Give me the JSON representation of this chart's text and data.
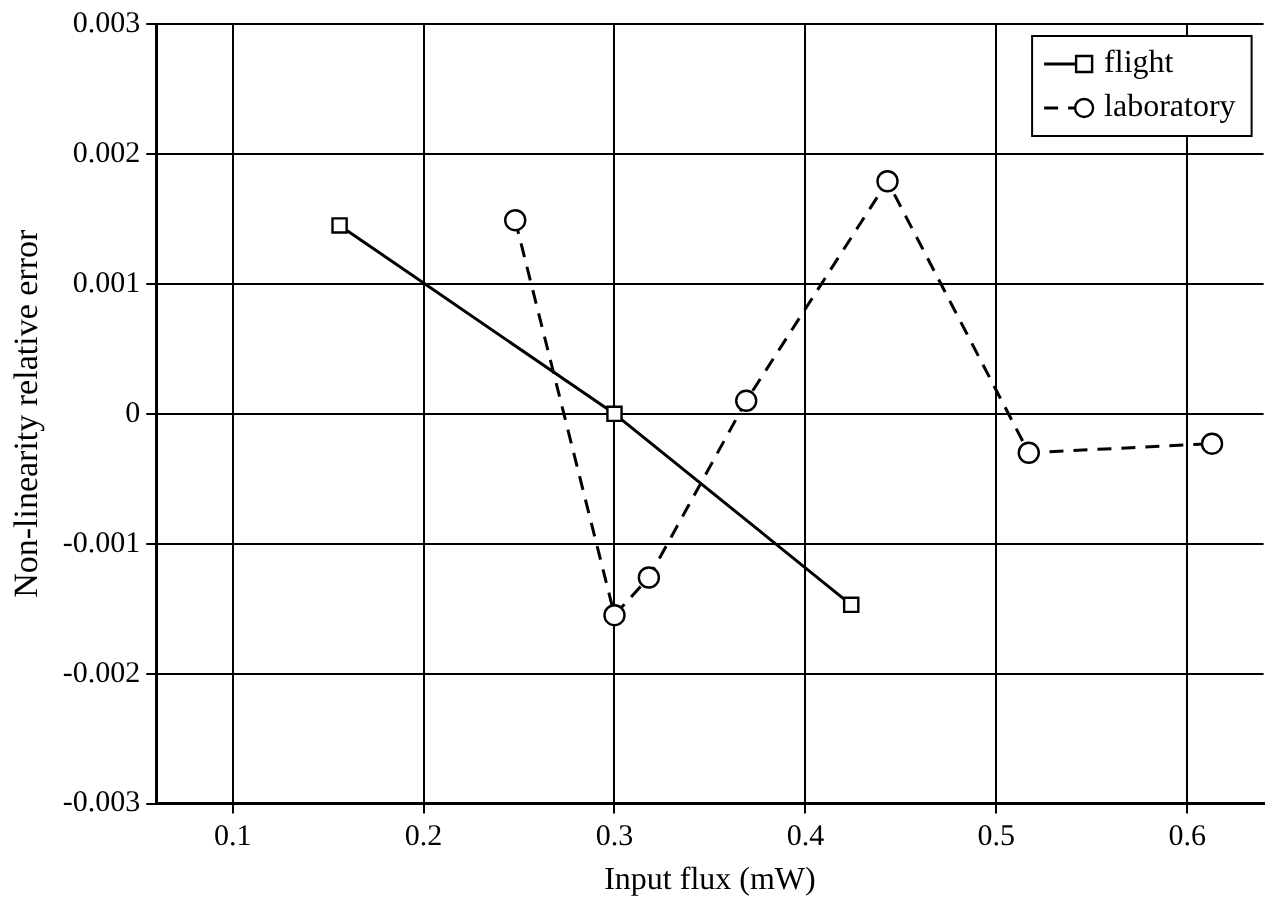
{
  "chart_data": {
    "type": "line",
    "xlabel": "Input flux (mW)",
    "ylabel": "Non-linearity relative error",
    "xlim": [
      0.06,
      0.64
    ],
    "xticks": [
      0.1,
      0.2,
      0.3,
      0.4,
      0.5,
      0.6
    ],
    "ylim": [
      -0.003,
      0.003
    ],
    "yticks": [
      -0.003,
      -0.002,
      -0.001,
      0,
      0.001,
      0.002,
      0.003
    ],
    "grid": true,
    "legend": "top right",
    "series": [
      {
        "name": "flight",
        "color": "#000000",
        "marker": "square",
        "line_style": "solid",
        "x": [
          0.156,
          0.3,
          0.424
        ],
        "values": [
          0.00145,
          0.0,
          -0.00147
        ]
      },
      {
        "name": "laboratory",
        "color": "#000000",
        "marker": "circle",
        "line_style": "dashed",
        "x": [
          0.248,
          0.3,
          0.318,
          0.369,
          0.443,
          0.517,
          0.613
        ],
        "values": [
          0.00149,
          -0.00155,
          -0.00126,
          0.0001,
          0.00179,
          -0.0003,
          -0.00023
        ]
      }
    ]
  }
}
